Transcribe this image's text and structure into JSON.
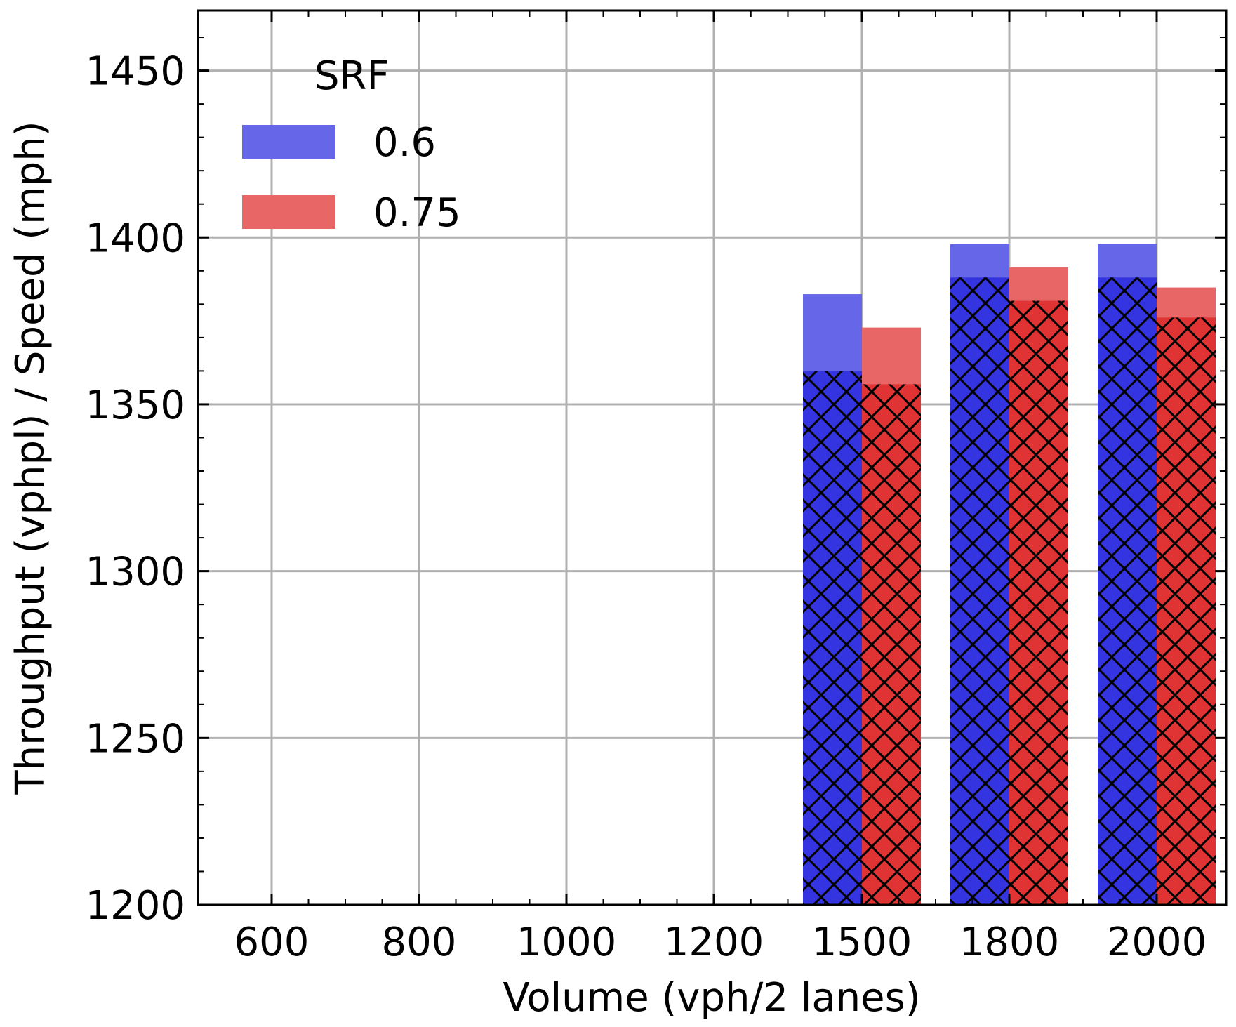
{
  "chart_data": {
    "type": "bar",
    "categories": [
      "600",
      "800",
      "1000",
      "1200",
      "1500",
      "1800",
      "2000"
    ],
    "xlabel": "Volume (vph/2 lanes)",
    "ylabel": "Throughput (vphpl) / Speed (mph)",
    "ylim": [
      1200,
      1468
    ],
    "yticks": [
      1200,
      1250,
      1300,
      1350,
      1400,
      1450
    ],
    "grid": true,
    "legend": {
      "title": "SRF",
      "position": "top-left"
    },
    "series": [
      {
        "name": "0.6",
        "color": "#3434e0",
        "light_color": "#6666e8",
        "values": [
          null,
          null,
          null,
          null,
          1383,
          1398,
          1398
        ],
        "hatched_values": [
          null,
          null,
          null,
          null,
          1360,
          1388,
          1388
        ]
      },
      {
        "name": "0.75",
        "color": "#e03434",
        "light_color": "#e86666",
        "values": [
          null,
          null,
          null,
          null,
          1373,
          1391,
          1385
        ],
        "hatched_values": [
          null,
          null,
          null,
          null,
          1356,
          1381,
          1376
        ]
      }
    ]
  }
}
